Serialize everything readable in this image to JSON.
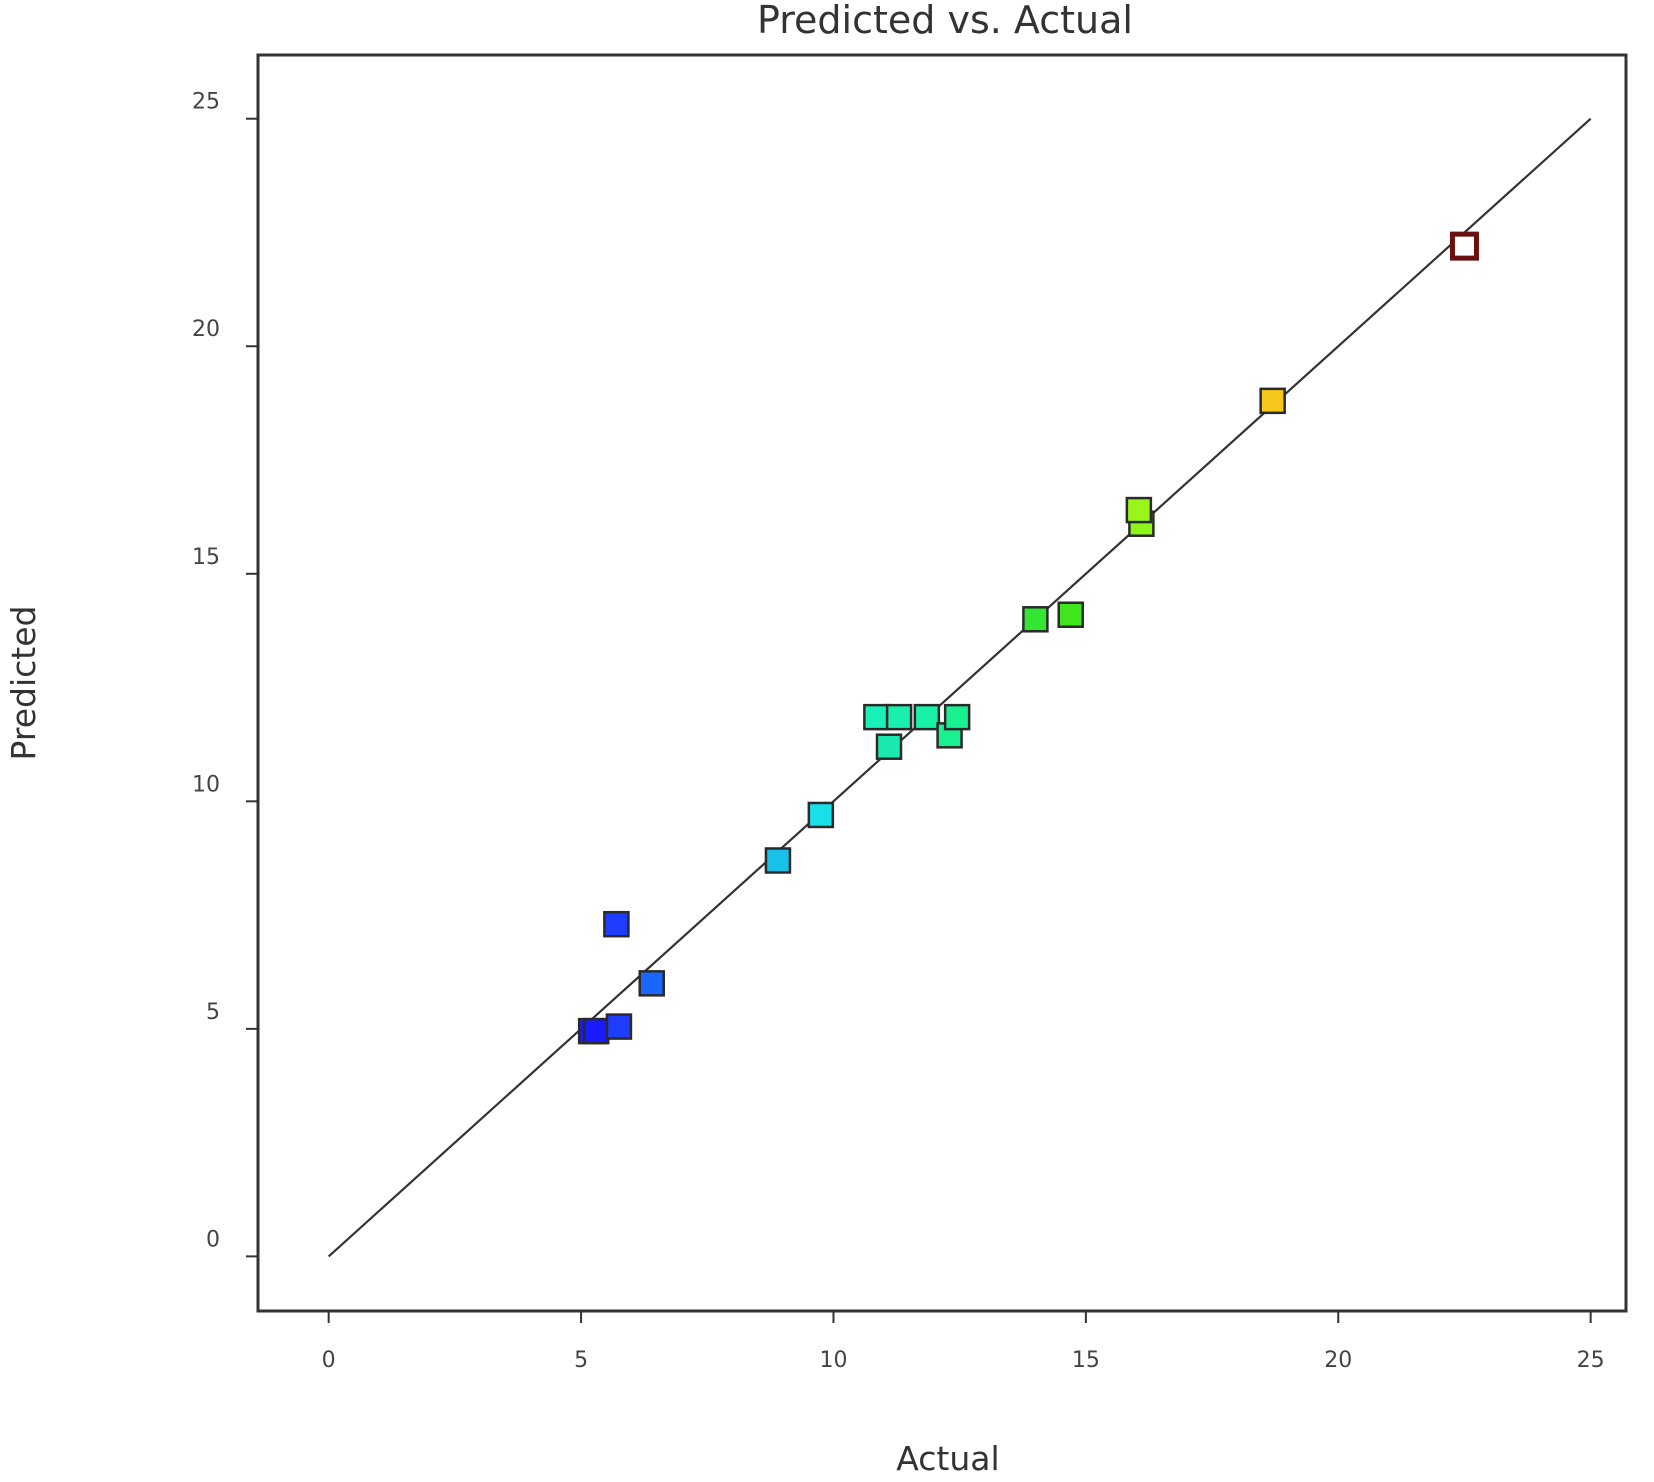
{
  "chart_data": {
    "type": "scatter",
    "title": "Predicted vs. Actual",
    "xlabel": "Actual",
    "ylabel": "Predicted",
    "xlim": [
      -1.4,
      25.7
    ],
    "ylim": [
      -1.2,
      26.4
    ],
    "xticks": [
      0,
      5,
      10,
      15,
      20,
      25
    ],
    "yticks": [
      0,
      5,
      10,
      15,
      20,
      25
    ],
    "xtick_labels": [
      "0",
      "5",
      "10",
      "15",
      "20",
      "25"
    ],
    "ytick_labels": [
      "0",
      "5",
      "10",
      "15",
      "20",
      "25"
    ],
    "grid": false,
    "legend": "none",
    "reference_line": {
      "from": [
        0,
        0
      ],
      "to": [
        25,
        25
      ],
      "color": "#333333"
    },
    "marker": "square",
    "points": [
      {
        "x": 5.2,
        "y": 4.95,
        "color": "#1a1aff"
      },
      {
        "x": 5.3,
        "y": 4.95,
        "color": "#1a1aff"
      },
      {
        "x": 5.75,
        "y": 5.05,
        "color": "#1f3dff"
      },
      {
        "x": 5.7,
        "y": 7.3,
        "color": "#1f3dff"
      },
      {
        "x": 6.4,
        "y": 6.0,
        "color": "#1a66ff"
      },
      {
        "x": 8.9,
        "y": 8.7,
        "color": "#19c0e8"
      },
      {
        "x": 9.75,
        "y": 9.7,
        "color": "#19e0e8"
      },
      {
        "x": 11.1,
        "y": 11.2,
        "color": "#19e8b0"
      },
      {
        "x": 10.85,
        "y": 11.85,
        "color": "#19f0b8"
      },
      {
        "x": 11.3,
        "y": 11.85,
        "color": "#19f0b0"
      },
      {
        "x": 11.85,
        "y": 11.85,
        "color": "#19f0a8"
      },
      {
        "x": 12.3,
        "y": 11.45,
        "color": "#19f090"
      },
      {
        "x": 12.45,
        "y": 11.85,
        "color": "#19f090"
      },
      {
        "x": 14.0,
        "y": 14.0,
        "color": "#33e633"
      },
      {
        "x": 14.7,
        "y": 14.1,
        "color": "#3fe61f"
      },
      {
        "x": 16.1,
        "y": 16.1,
        "color": "#8cf51a"
      },
      {
        "x": 16.05,
        "y": 16.4,
        "color": "#99f51a"
      },
      {
        "x": 18.7,
        "y": 18.8,
        "color": "#f5c71a"
      },
      {
        "x": 22.5,
        "y": 22.2,
        "color": "#ffffff",
        "edge": "#6b1010"
      }
    ]
  }
}
